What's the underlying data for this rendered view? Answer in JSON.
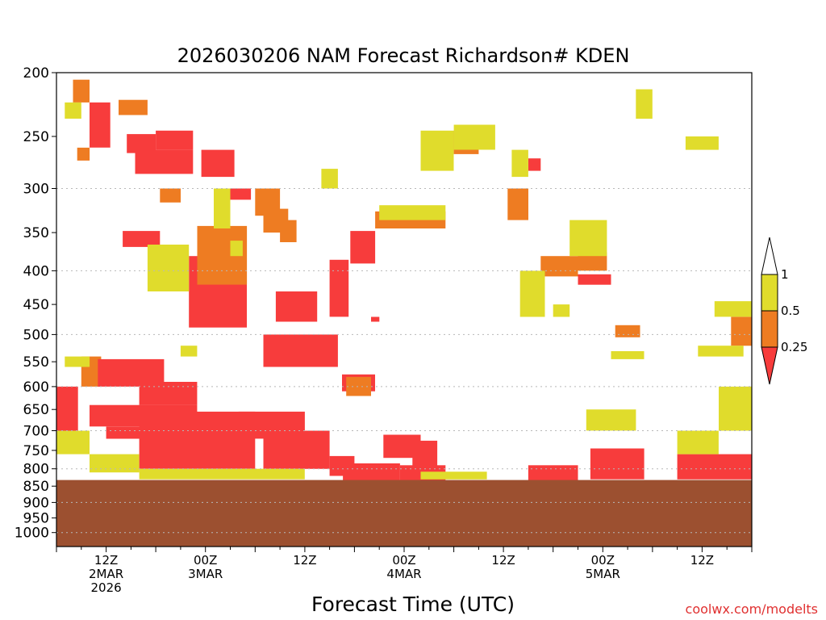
{
  "chart_data": {
    "type": "heatmap",
    "title": "2026030206 NAM Forecast Richardson# KDEN",
    "xlabel": "Forecast Time (UTC)",
    "ylabel": "",
    "credit": "coolwx.com/modelts",
    "y_axis": {
      "scale": "log-pressure",
      "range": [
        1050,
        200
      ],
      "ticks": [
        200,
        250,
        300,
        350,
        400,
        450,
        500,
        550,
        600,
        650,
        700,
        750,
        800,
        850,
        900,
        950,
        1000
      ],
      "gridlines": [
        300,
        400,
        500,
        600,
        700,
        800,
        900,
        1000
      ]
    },
    "x_axis": {
      "range_hours": [
        0,
        84
      ],
      "ticks": [
        {
          "hour": 6,
          "lines": [
            "12Z",
            "2MAR",
            "2026"
          ]
        },
        {
          "hour": 18,
          "lines": [
            "00Z",
            "3MAR"
          ]
        },
        {
          "hour": 30,
          "lines": [
            "12Z"
          ]
        },
        {
          "hour": 42,
          "lines": [
            "00Z",
            "4MAR"
          ]
        },
        {
          "hour": 54,
          "lines": [
            "12Z"
          ]
        },
        {
          "hour": 66,
          "lines": [
            "00Z",
            "5MAR"
          ]
        },
        {
          "hour": 78,
          "lines": [
            "12Z"
          ]
        }
      ]
    },
    "colorbar": {
      "labels": [
        "1",
        "0.5",
        "0.25"
      ],
      "bins": [
        {
          "range": "> 1",
          "color": "#ffffff"
        },
        {
          "range": "0.5 - 1",
          "color": "#e0dc2c"
        },
        {
          "range": "0.25 - 0.5",
          "color": "#ee7c22"
        },
        {
          "range": "< 0.25",
          "color": "#f73c3c"
        }
      ]
    },
    "terrain": {
      "label": "below ground",
      "color": "#9c5030",
      "surface_pressure_approx": 832
    },
    "regions": [
      {
        "x": [
          0,
          2.6
        ],
        "p": [
          600,
          705
        ],
        "cat": "r"
      },
      {
        "x": [
          3,
          5.4
        ],
        "p": [
          540,
          600
        ],
        "cat": "o"
      },
      {
        "x": [
          5,
          13
        ],
        "p": [
          545,
          600
        ],
        "cat": "r"
      },
      {
        "x": [
          10,
          17
        ],
        "p": [
          590,
          640
        ],
        "cat": "r"
      },
      {
        "x": [
          4,
          17
        ],
        "p": [
          640,
          690
        ],
        "cat": "r"
      },
      {
        "x": [
          6,
          12
        ],
        "p": [
          690,
          720
        ],
        "cat": "r"
      },
      {
        "x": [
          10,
          24
        ],
        "p": [
          655,
          800
        ],
        "cat": "r"
      },
      {
        "x": [
          22,
          30
        ],
        "p": [
          655,
          720
        ],
        "cat": "r"
      },
      {
        "x": [
          25,
          33
        ],
        "p": [
          700,
          800
        ],
        "cat": "r"
      },
      {
        "x": [
          33,
          36
        ],
        "p": [
          765,
          820
        ],
        "cat": "r"
      },
      {
        "x": [
          34.6,
          41.5
        ],
        "p": [
          785,
          835
        ],
        "cat": "r"
      },
      {
        "x": [
          39.5,
          44
        ],
        "p": [
          710,
          770
        ],
        "cat": "r"
      },
      {
        "x": [
          43,
          46
        ],
        "p": [
          725,
          800
        ],
        "cat": "r"
      },
      {
        "x": [
          41.5,
          47
        ],
        "p": [
          790,
          835
        ],
        "cat": "r"
      },
      {
        "x": [
          57,
          63
        ],
        "p": [
          790,
          835
        ],
        "cat": "r"
      },
      {
        "x": [
          64.5,
          71
        ],
        "p": [
          745,
          830
        ],
        "cat": "r"
      },
      {
        "x": [
          75,
          84
        ],
        "p": [
          760,
          830
        ],
        "cat": "r"
      },
      {
        "x": [
          4,
          6.5
        ],
        "p": [
          222,
          260
        ],
        "cat": "r"
      },
      {
        "x": [
          8.5,
          12
        ],
        "p": [
          248,
          265
        ],
        "cat": "r"
      },
      {
        "x": [
          9.5,
          16.5
        ],
        "p": [
          262,
          285
        ],
        "cat": "r"
      },
      {
        "x": [
          12,
          16.5
        ],
        "p": [
          245,
          262
        ],
        "cat": "r"
      },
      {
        "x": [
          17.5,
          21.5
        ],
        "p": [
          262,
          288
        ],
        "cat": "r"
      },
      {
        "x": [
          8,
          12.5
        ],
        "p": [
          348,
          368
        ],
        "cat": "r"
      },
      {
        "x": [
          16,
          23
        ],
        "p": [
          380,
          488
        ],
        "cat": "r"
      },
      {
        "x": [
          20,
          23.5
        ],
        "p": [
          300,
          312
        ],
        "cat": "r"
      },
      {
        "x": [
          26.5,
          31.5
        ],
        "p": [
          430,
          478
        ],
        "cat": "r"
      },
      {
        "x": [
          25,
          34
        ],
        "p": [
          500,
          560
        ],
        "cat": "r"
      },
      {
        "x": [
          33,
          35.3
        ],
        "p": [
          385,
          470
        ],
        "cat": "r"
      },
      {
        "x": [
          35.5,
          38.5
        ],
        "p": [
          348,
          390
        ],
        "cat": "r"
      },
      {
        "x": [
          38,
          39
        ],
        "p": [
          470,
          478
        ],
        "cat": "r"
      },
      {
        "x": [
          34.5,
          38.5
        ],
        "p": [
          575,
          610
        ],
        "cat": "r"
      },
      {
        "x": [
          57,
          58.5
        ],
        "p": [
          270,
          282
        ],
        "cat": "r"
      },
      {
        "x": [
          63,
          67
        ],
        "p": [
          405,
          420
        ],
        "cat": "r"
      },
      {
        "x": [
          2,
          4
        ],
        "p": [
          205,
          222
        ],
        "cat": "o"
      },
      {
        "x": [
          2.5,
          4
        ],
        "p": [
          260,
          272
        ],
        "cat": "o"
      },
      {
        "x": [
          7.5,
          11
        ],
        "p": [
          220,
          232
        ],
        "cat": "o"
      },
      {
        "x": [
          17,
          23
        ],
        "p": [
          342,
          420
        ],
        "cat": "o"
      },
      {
        "x": [
          24,
          27
        ],
        "p": [
          300,
          330
        ],
        "cat": "o"
      },
      {
        "x": [
          27,
          29
        ],
        "p": [
          335,
          362
        ],
        "cat": "o"
      },
      {
        "x": [
          38.5,
          47
        ],
        "p": [
          325,
          345
        ],
        "cat": "o"
      },
      {
        "x": [
          48,
          51
        ],
        "p": [
          245,
          266
        ],
        "cat": "o"
      },
      {
        "x": [
          54.5,
          57
        ],
        "p": [
          300,
          335
        ],
        "cat": "o"
      },
      {
        "x": [
          58.5,
          63
        ],
        "p": [
          380,
          408
        ],
        "cat": "o"
      },
      {
        "x": [
          63,
          66.5
        ],
        "p": [
          375,
          400
        ],
        "cat": "o"
      },
      {
        "x": [
          67.5,
          70.5
        ],
        "p": [
          484,
          505
        ],
        "cat": "o"
      },
      {
        "x": [
          81.5,
          84
        ],
        "p": [
          470,
          520
        ],
        "cat": "o"
      },
      {
        "x": [
          25,
          28
        ],
        "p": [
          322,
          350
        ],
        "cat": "o"
      },
      {
        "x": [
          12.5,
          15
        ],
        "p": [
          300,
          315
        ],
        "cat": "o"
      },
      {
        "x": [
          35,
          38
        ],
        "p": [
          580,
          620
        ],
        "cat": "o"
      },
      {
        "x": [
          83,
          84
        ],
        "p": [
          600,
          640
        ],
        "cat": "o"
      },
      {
        "x": [
          1,
          3
        ],
        "p": [
          222,
          235
        ],
        "cat": "y"
      },
      {
        "x": [
          44,
          48
        ],
        "p": [
          245,
          282
        ],
        "cat": "y"
      },
      {
        "x": [
          48,
          53
        ],
        "p": [
          240,
          262
        ],
        "cat": "y"
      },
      {
        "x": [
          55,
          57
        ],
        "p": [
          262,
          288
        ],
        "cat": "y"
      },
      {
        "x": [
          70,
          72
        ],
        "p": [
          212,
          235
        ],
        "cat": "y"
      },
      {
        "x": [
          76,
          80
        ],
        "p": [
          250,
          262
        ],
        "cat": "y"
      },
      {
        "x": [
          39,
          47
        ],
        "p": [
          318,
          335
        ],
        "cat": "y"
      },
      {
        "x": [
          19,
          21
        ],
        "p": [
          300,
          345
        ],
        "cat": "y"
      },
      {
        "x": [
          21,
          22.5
        ],
        "p": [
          360,
          380
        ],
        "cat": "y"
      },
      {
        "x": [
          11,
          16
        ],
        "p": [
          365,
          430
        ],
        "cat": "y"
      },
      {
        "x": [
          56,
          59
        ],
        "p": [
          400,
          470
        ],
        "cat": "y"
      },
      {
        "x": [
          60,
          62
        ],
        "p": [
          450,
          470
        ],
        "cat": "y"
      },
      {
        "x": [
          62,
          66.5
        ],
        "p": [
          335,
          380
        ],
        "cat": "y"
      },
      {
        "x": [
          79.5,
          84
        ],
        "p": [
          445,
          470
        ],
        "cat": "y"
      },
      {
        "x": [
          77.5,
          83
        ],
        "p": [
          520,
          540
        ],
        "cat": "y"
      },
      {
        "x": [
          80,
          84
        ],
        "p": [
          600,
          700
        ],
        "cat": "y"
      },
      {
        "x": [
          1,
          4
        ],
        "p": [
          540,
          560
        ],
        "cat": "y"
      },
      {
        "x": [
          0,
          4
        ],
        "p": [
          700,
          760
        ],
        "cat": "y"
      },
      {
        "x": [
          4,
          10
        ],
        "p": [
          760,
          810
        ],
        "cat": "y"
      },
      {
        "x": [
          10,
          30
        ],
        "p": [
          800,
          830
        ],
        "cat": "y"
      },
      {
        "x": [
          44,
          52
        ],
        "p": [
          808,
          830
        ],
        "cat": "y"
      },
      {
        "x": [
          64,
          70
        ],
        "p": [
          650,
          700
        ],
        "cat": "y"
      },
      {
        "x": [
          75,
          80
        ],
        "p": [
          700,
          760
        ],
        "cat": "y"
      },
      {
        "x": [
          67,
          71
        ],
        "p": [
          530,
          545
        ],
        "cat": "y"
      },
      {
        "x": [
          32,
          34
        ],
        "p": [
          280,
          300
        ],
        "cat": "y"
      },
      {
        "x": [
          15,
          17
        ],
        "p": [
          520,
          540
        ],
        "cat": "y"
      }
    ]
  }
}
